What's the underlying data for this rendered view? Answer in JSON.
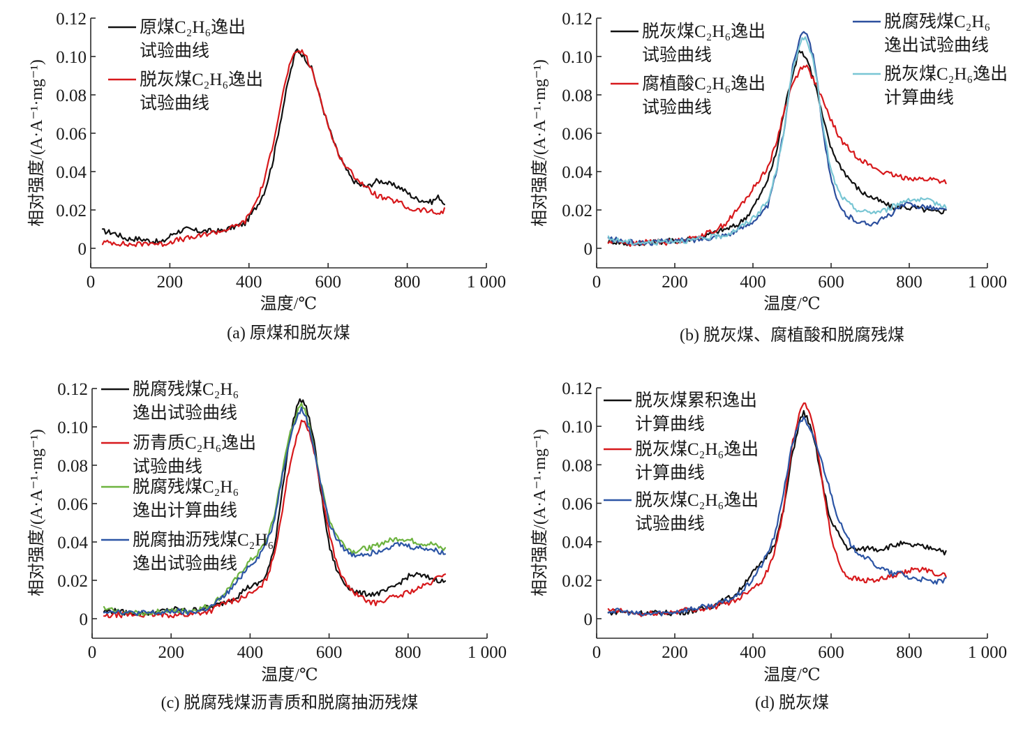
{
  "chart_data": [
    {
      "id": "a",
      "type": "line",
      "caption": "(a) 原煤和脱灰煤",
      "xlabel": "温度/℃",
      "ylabel": "相对强度/(A·A⁻¹·mg⁻¹)",
      "xlim": [
        0,
        1000
      ],
      "ylim": [
        -0.01,
        0.12
      ],
      "xticks": [
        0,
        200,
        400,
        600,
        800,
        1000
      ],
      "xtick_labels": [
        "0",
        "200",
        "400",
        "600",
        "800",
        "1 000"
      ],
      "yticks": [
        0,
        0.02,
        0.04,
        0.06,
        0.08,
        0.1,
        0.12
      ],
      "ytick_labels": [
        "0",
        "0.02",
        "0.04",
        "0.06",
        "0.08",
        "0.10",
        "0.12"
      ],
      "grid": false,
      "legend_position": "top-left",
      "x": [
        30,
        60,
        90,
        120,
        150,
        180,
        210,
        240,
        270,
        300,
        330,
        360,
        390,
        420,
        440,
        460,
        480,
        500,
        520,
        540,
        560,
        580,
        600,
        620,
        640,
        660,
        680,
        700,
        720,
        740,
        760,
        780,
        800,
        820,
        840,
        860,
        880,
        895
      ],
      "series": [
        {
          "name": "原煤C₂H₆逸出试验曲线",
          "color": "#111111",
          "values": [
            0.009,
            0.008,
            0.005,
            0.005,
            0.004,
            0.003,
            0.008,
            0.01,
            0.009,
            0.009,
            0.009,
            0.011,
            0.013,
            0.022,
            0.03,
            0.045,
            0.067,
            0.088,
            0.104,
            0.1,
            0.093,
            0.078,
            0.064,
            0.052,
            0.043,
            0.036,
            0.033,
            0.032,
            0.035,
            0.035,
            0.033,
            0.032,
            0.029,
            0.026,
            0.025,
            0.024,
            0.027,
            0.023
          ]
        },
        {
          "name": "脱灰煤C₂H₆逸出试验曲线",
          "color": "#d7191c",
          "values": [
            0.003,
            0.003,
            0.002,
            0.002,
            0.003,
            0.002,
            0.004,
            0.005,
            0.006,
            0.008,
            0.009,
            0.011,
            0.014,
            0.025,
            0.036,
            0.054,
            0.075,
            0.094,
            0.103,
            0.102,
            0.092,
            0.079,
            0.064,
            0.052,
            0.044,
            0.039,
            0.035,
            0.031,
            0.028,
            0.026,
            0.025,
            0.024,
            0.021,
            0.02,
            0.02,
            0.019,
            0.018,
            0.02
          ]
        }
      ]
    },
    {
      "id": "b",
      "type": "line",
      "caption": "(b) 脱灰煤、腐植酸和脱腐残煤",
      "xlabel": "温度/℃",
      "ylabel": "相对强度/(A·A⁻¹·mg⁻¹)",
      "xlim": [
        0,
        1000
      ],
      "ylim": [
        -0.01,
        0.12
      ],
      "xticks": [
        0,
        200,
        400,
        600,
        800,
        1000
      ],
      "xtick_labels": [
        "0",
        "200",
        "400",
        "600",
        "800",
        "1 000"
      ],
      "yticks": [
        0,
        0.02,
        0.04,
        0.06,
        0.08,
        0.1,
        0.12
      ],
      "ytick_labels": [
        "0",
        "0.02",
        "0.04",
        "0.06",
        "0.08",
        "0.10",
        "0.12"
      ],
      "grid": false,
      "legend_position": "top-left and top-right",
      "x": [
        30,
        60,
        90,
        120,
        150,
        180,
        210,
        240,
        270,
        300,
        330,
        360,
        390,
        420,
        440,
        460,
        480,
        500,
        520,
        530,
        540,
        560,
        580,
        600,
        620,
        640,
        660,
        680,
        700,
        720,
        740,
        760,
        780,
        800,
        820,
        840,
        860,
        880,
        895
      ],
      "series": [
        {
          "name": "脱灰煤C₂H₆逸出试验曲线",
          "color": "#111111",
          "values": [
            0.004,
            0.003,
            0.002,
            0.003,
            0.003,
            0.004,
            0.004,
            0.005,
            0.006,
            0.008,
            0.01,
            0.012,
            0.018,
            0.028,
            0.037,
            0.05,
            0.072,
            0.09,
            0.104,
            0.101,
            0.098,
            0.085,
            0.067,
            0.052,
            0.044,
            0.038,
            0.033,
            0.029,
            0.027,
            0.025,
            0.023,
            0.021,
            0.022,
            0.021,
            0.021,
            0.02,
            0.019,
            0.019,
            0.02
          ]
        },
        {
          "name": "腐植酸C₂H₆逸出试验曲线",
          "color": "#d7191c",
          "values": [
            0.003,
            0.004,
            0.002,
            0.003,
            0.004,
            0.003,
            0.004,
            0.005,
            0.007,
            0.009,
            0.013,
            0.02,
            0.028,
            0.037,
            0.043,
            0.055,
            0.072,
            0.085,
            0.093,
            0.096,
            0.094,
            0.086,
            0.076,
            0.067,
            0.058,
            0.053,
            0.049,
            0.046,
            0.043,
            0.041,
            0.039,
            0.038,
            0.037,
            0.037,
            0.036,
            0.036,
            0.036,
            0.035,
            0.035
          ]
        },
        {
          "name": "脱腐残煤C₂H₆逸出试验曲线",
          "color": "#2c4f9e",
          "values": [
            0.005,
            0.004,
            0.003,
            0.003,
            0.003,
            0.004,
            0.004,
            0.004,
            0.005,
            0.006,
            0.007,
            0.009,
            0.013,
            0.017,
            0.023,
            0.04,
            0.062,
            0.093,
            0.11,
            0.114,
            0.112,
            0.095,
            0.06,
            0.035,
            0.022,
            0.017,
            0.015,
            0.013,
            0.013,
            0.014,
            0.016,
            0.019,
            0.022,
            0.023,
            0.022,
            0.022,
            0.021,
            0.02,
            0.02
          ]
        },
        {
          "name": "脱灰煤C₂H₆逸出计算曲线",
          "color": "#79c6d4",
          "values": [
            0.005,
            0.004,
            0.003,
            0.003,
            0.003,
            0.004,
            0.004,
            0.004,
            0.005,
            0.006,
            0.007,
            0.01,
            0.014,
            0.02,
            0.025,
            0.041,
            0.062,
            0.092,
            0.107,
            0.11,
            0.107,
            0.093,
            0.062,
            0.04,
            0.029,
            0.024,
            0.021,
            0.019,
            0.019,
            0.019,
            0.02,
            0.022,
            0.024,
            0.026,
            0.025,
            0.025,
            0.024,
            0.023,
            0.022
          ]
        }
      ]
    },
    {
      "id": "c",
      "type": "line",
      "caption": "(c) 脱腐残煤沥青质和脱腐抽沥残煤",
      "xlabel": "温度/℃",
      "ylabel": "相对强度/(A·A⁻¹·mg⁻¹)",
      "xlim": [
        0,
        1000
      ],
      "ylim": [
        -0.01,
        0.12
      ],
      "xticks": [
        0,
        200,
        400,
        600,
        800,
        1000
      ],
      "xtick_labels": [
        "0",
        "200",
        "400",
        "600",
        "800",
        "1 000"
      ],
      "yticks": [
        0,
        0.02,
        0.04,
        0.06,
        0.08,
        0.1,
        0.12
      ],
      "ytick_labels": [
        "0",
        "0.02",
        "0.04",
        "0.06",
        "0.08",
        "0.10",
        "0.12"
      ],
      "grid": false,
      "legend_position": "top-left",
      "x": [
        30,
        60,
        90,
        120,
        150,
        180,
        210,
        240,
        270,
        300,
        330,
        350,
        370,
        390,
        420,
        440,
        460,
        480,
        500,
        520,
        530,
        540,
        560,
        580,
        600,
        620,
        640,
        660,
        680,
        700,
        720,
        740,
        760,
        780,
        800,
        820,
        840,
        860,
        880,
        895
      ],
      "series": [
        {
          "name": "脱腐残煤C₂H₆逸出试验曲线",
          "color": "#111111",
          "values": [
            0.004,
            0.004,
            0.003,
            0.003,
            0.003,
            0.004,
            0.005,
            0.004,
            0.005,
            0.006,
            0.008,
            0.01,
            0.012,
            0.016,
            0.018,
            0.022,
            0.035,
            0.065,
            0.095,
            0.112,
            0.114,
            0.112,
            0.095,
            0.065,
            0.038,
            0.025,
            0.018,
            0.015,
            0.013,
            0.013,
            0.013,
            0.014,
            0.016,
            0.019,
            0.022,
            0.023,
            0.022,
            0.021,
            0.02,
            0.019
          ]
        },
        {
          "name": "沥青质C₂H₆逸出试验曲线",
          "color": "#d7191c",
          "values": [
            0.001,
            0.002,
            0.002,
            0.002,
            0.002,
            0.002,
            0.002,
            0.002,
            0.003,
            0.004,
            0.008,
            0.009,
            0.01,
            0.012,
            0.015,
            0.02,
            0.032,
            0.055,
            0.08,
            0.097,
            0.102,
            0.103,
            0.09,
            0.067,
            0.045,
            0.028,
            0.019,
            0.014,
            0.011,
            0.009,
            0.008,
            0.01,
            0.011,
            0.012,
            0.014,
            0.015,
            0.017,
            0.019,
            0.022,
            0.024
          ]
        },
        {
          "name": "脱腐残煤C₂H₆逸出计算曲线",
          "color": "#6db33f",
          "values": [
            0.005,
            0.004,
            0.003,
            0.003,
            0.003,
            0.004,
            0.004,
            0.004,
            0.005,
            0.007,
            0.012,
            0.017,
            0.022,
            0.028,
            0.034,
            0.04,
            0.052,
            0.075,
            0.096,
            0.108,
            0.111,
            0.108,
            0.092,
            0.07,
            0.052,
            0.043,
            0.038,
            0.035,
            0.036,
            0.037,
            0.038,
            0.04,
            0.041,
            0.042,
            0.041,
            0.04,
            0.039,
            0.039,
            0.037,
            0.036
          ]
        },
        {
          "name": "脱腐抽沥残煤C₂H₆逸出试验曲线",
          "color": "#2c55a5",
          "values": [
            0.004,
            0.004,
            0.003,
            0.003,
            0.003,
            0.003,
            0.004,
            0.003,
            0.004,
            0.006,
            0.011,
            0.015,
            0.02,
            0.026,
            0.032,
            0.039,
            0.05,
            0.073,
            0.094,
            0.106,
            0.109,
            0.106,
            0.091,
            0.069,
            0.05,
            0.041,
            0.036,
            0.033,
            0.034,
            0.034,
            0.035,
            0.037,
            0.038,
            0.039,
            0.038,
            0.037,
            0.037,
            0.036,
            0.035,
            0.034
          ]
        }
      ]
    },
    {
      "id": "d",
      "type": "line",
      "caption": "(d) 脱灰煤",
      "xlabel": "温度/℃",
      "ylabel": "相对强度/(A·A⁻¹·mg⁻¹)",
      "xlim": [
        0,
        1000
      ],
      "ylim": [
        -0.01,
        0.12
      ],
      "xticks": [
        0,
        200,
        400,
        600,
        800,
        1000
      ],
      "xtick_labels": [
        "0",
        "200",
        "400",
        "600",
        "800",
        "1 000"
      ],
      "yticks": [
        0,
        0.02,
        0.04,
        0.06,
        0.08,
        0.1,
        0.12
      ],
      "ytick_labels": [
        "0",
        "0.02",
        "0.04",
        "0.06",
        "0.08",
        "0.10",
        "0.12"
      ],
      "grid": false,
      "legend_position": "top-left",
      "x": [
        30,
        60,
        90,
        120,
        150,
        180,
        210,
        240,
        270,
        300,
        330,
        360,
        390,
        420,
        440,
        460,
        480,
        500,
        520,
        530,
        540,
        560,
        580,
        600,
        620,
        640,
        660,
        680,
        700,
        720,
        740,
        760,
        780,
        800,
        820,
        840,
        860,
        880,
        895
      ],
      "series": [
        {
          "name": "脱灰煤累积逸出计算曲线",
          "color": "#111111",
          "values": [
            0.003,
            0.004,
            0.003,
            0.003,
            0.003,
            0.003,
            0.003,
            0.004,
            0.005,
            0.007,
            0.01,
            0.013,
            0.022,
            0.028,
            0.034,
            0.041,
            0.058,
            0.085,
            0.103,
            0.107,
            0.104,
            0.09,
            0.068,
            0.05,
            0.044,
            0.037,
            0.036,
            0.036,
            0.037,
            0.036,
            0.037,
            0.038,
            0.039,
            0.038,
            0.038,
            0.037,
            0.037,
            0.036,
            0.034
          ]
        },
        {
          "name": "脱灰煤C₂H₆逸出计算曲线",
          "color": "#d7191c",
          "values": [
            0.004,
            0.004,
            0.003,
            0.002,
            0.003,
            0.003,
            0.004,
            0.005,
            0.005,
            0.006,
            0.008,
            0.01,
            0.015,
            0.019,
            0.026,
            0.038,
            0.06,
            0.09,
            0.108,
            0.111,
            0.11,
            0.095,
            0.068,
            0.042,
            0.029,
            0.022,
            0.021,
            0.02,
            0.02,
            0.02,
            0.021,
            0.022,
            0.023,
            0.025,
            0.026,
            0.025,
            0.024,
            0.023,
            0.022
          ]
        },
        {
          "name": "脱灰煤C₂H₆逸出试验曲线",
          "color": "#2c55a5",
          "values": [
            0.004,
            0.004,
            0.003,
            0.002,
            0.003,
            0.003,
            0.004,
            0.005,
            0.006,
            0.007,
            0.009,
            0.012,
            0.018,
            0.027,
            0.035,
            0.046,
            0.068,
            0.09,
            0.103,
            0.104,
            0.1,
            0.092,
            0.079,
            0.065,
            0.051,
            0.042,
            0.036,
            0.033,
            0.03,
            0.027,
            0.025,
            0.023,
            0.024,
            0.021,
            0.021,
            0.02,
            0.019,
            0.019,
            0.02
          ]
        }
      ]
    }
  ],
  "legends": {
    "a": [
      {
        "lines": [
          "原煤C₂H₆逸出",
          "试验曲线"
        ]
      },
      {
        "lines": [
          "脱灰煤C₂H₆逸出",
          "试验曲线"
        ]
      }
    ],
    "b": [
      {
        "lines": [
          "脱灰煤C₂H₆逸出",
          "试验曲线"
        ]
      },
      {
        "lines": [
          "腐植酸C₂H₆逸出",
          "试验曲线"
        ]
      },
      {
        "lines": [
          "脱腐残煤C₂H₆",
          "逸出试验曲线"
        ]
      },
      {
        "lines": [
          "脱灰煤C₂H₆逸出",
          "计算曲线"
        ]
      }
    ],
    "c": [
      {
        "lines": [
          "脱腐残煤C₂H₆",
          "逸出试验曲线"
        ]
      },
      {
        "lines": [
          "沥青质C₂H₆逸出",
          "试验曲线"
        ]
      },
      {
        "lines": [
          "脱腐残煤C₂H₆",
          "逸出计算曲线"
        ]
      },
      {
        "lines": [
          "脱腐抽沥残煤C₂H₆",
          "逸出试验曲线"
        ]
      }
    ],
    "d": [
      {
        "lines": [
          "脱灰煤累积逸出",
          "计算曲线"
        ]
      },
      {
        "lines": [
          "脱灰煤C₂H₆逸出",
          "计算曲线"
        ]
      },
      {
        "lines": [
          "脱灰煤C₂H₆逸出",
          "试验曲线"
        ]
      }
    ]
  }
}
